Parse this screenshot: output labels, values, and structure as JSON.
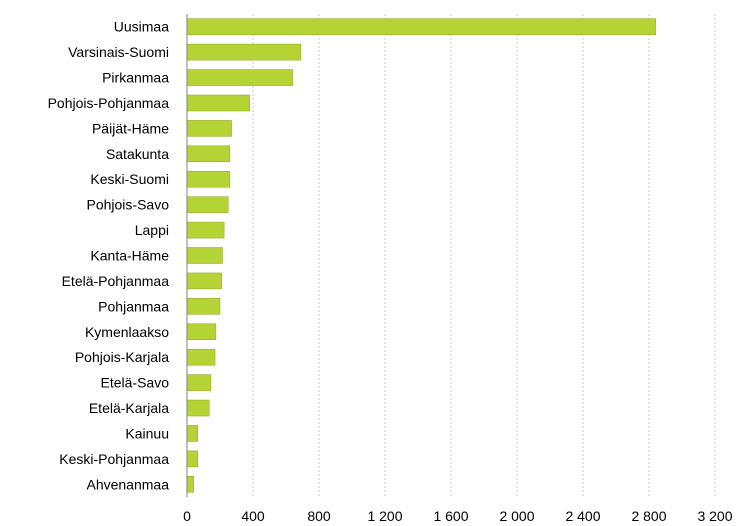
{
  "chart_data": {
    "type": "bar",
    "orientation": "horizontal",
    "title": "",
    "xlabel": "",
    "ylabel": "",
    "categories": [
      "Uusimaa",
      "Varsinais-Suomi",
      "Pirkanmaa",
      "Pohjois-Pohjanmaa",
      "Päijät-Häme",
      "Satakunta",
      "Keski-Suomi",
      "Pohjois-Savo",
      "Lappi",
      "Kanta-Häme",
      "Etelä-Pohjanmaa",
      "Pohjanmaa",
      "Kymenlaakso",
      "Pohjois-Karjala",
      "Etelä-Savo",
      "Etelä-Karjala",
      "Kainuu",
      "Keski-Pohjanmaa",
      "Ahvenanmaa"
    ],
    "values": [
      2840,
      690,
      640,
      380,
      270,
      260,
      260,
      250,
      225,
      215,
      210,
      200,
      175,
      170,
      145,
      135,
      65,
      65,
      40
    ],
    "xlim": [
      0,
      3200
    ],
    "ticks": [
      0,
      400,
      800,
      1200,
      1600,
      2000,
      2400,
      2800,
      3200
    ],
    "tick_labels": [
      "0",
      "400",
      "800",
      "1 200",
      "1 600",
      "2 000",
      "2 400",
      "2 800",
      "3 200"
    ],
    "grid": true,
    "legend": "none",
    "bar_color": "#b5d334",
    "bar_edge_color": "#8aa620"
  }
}
